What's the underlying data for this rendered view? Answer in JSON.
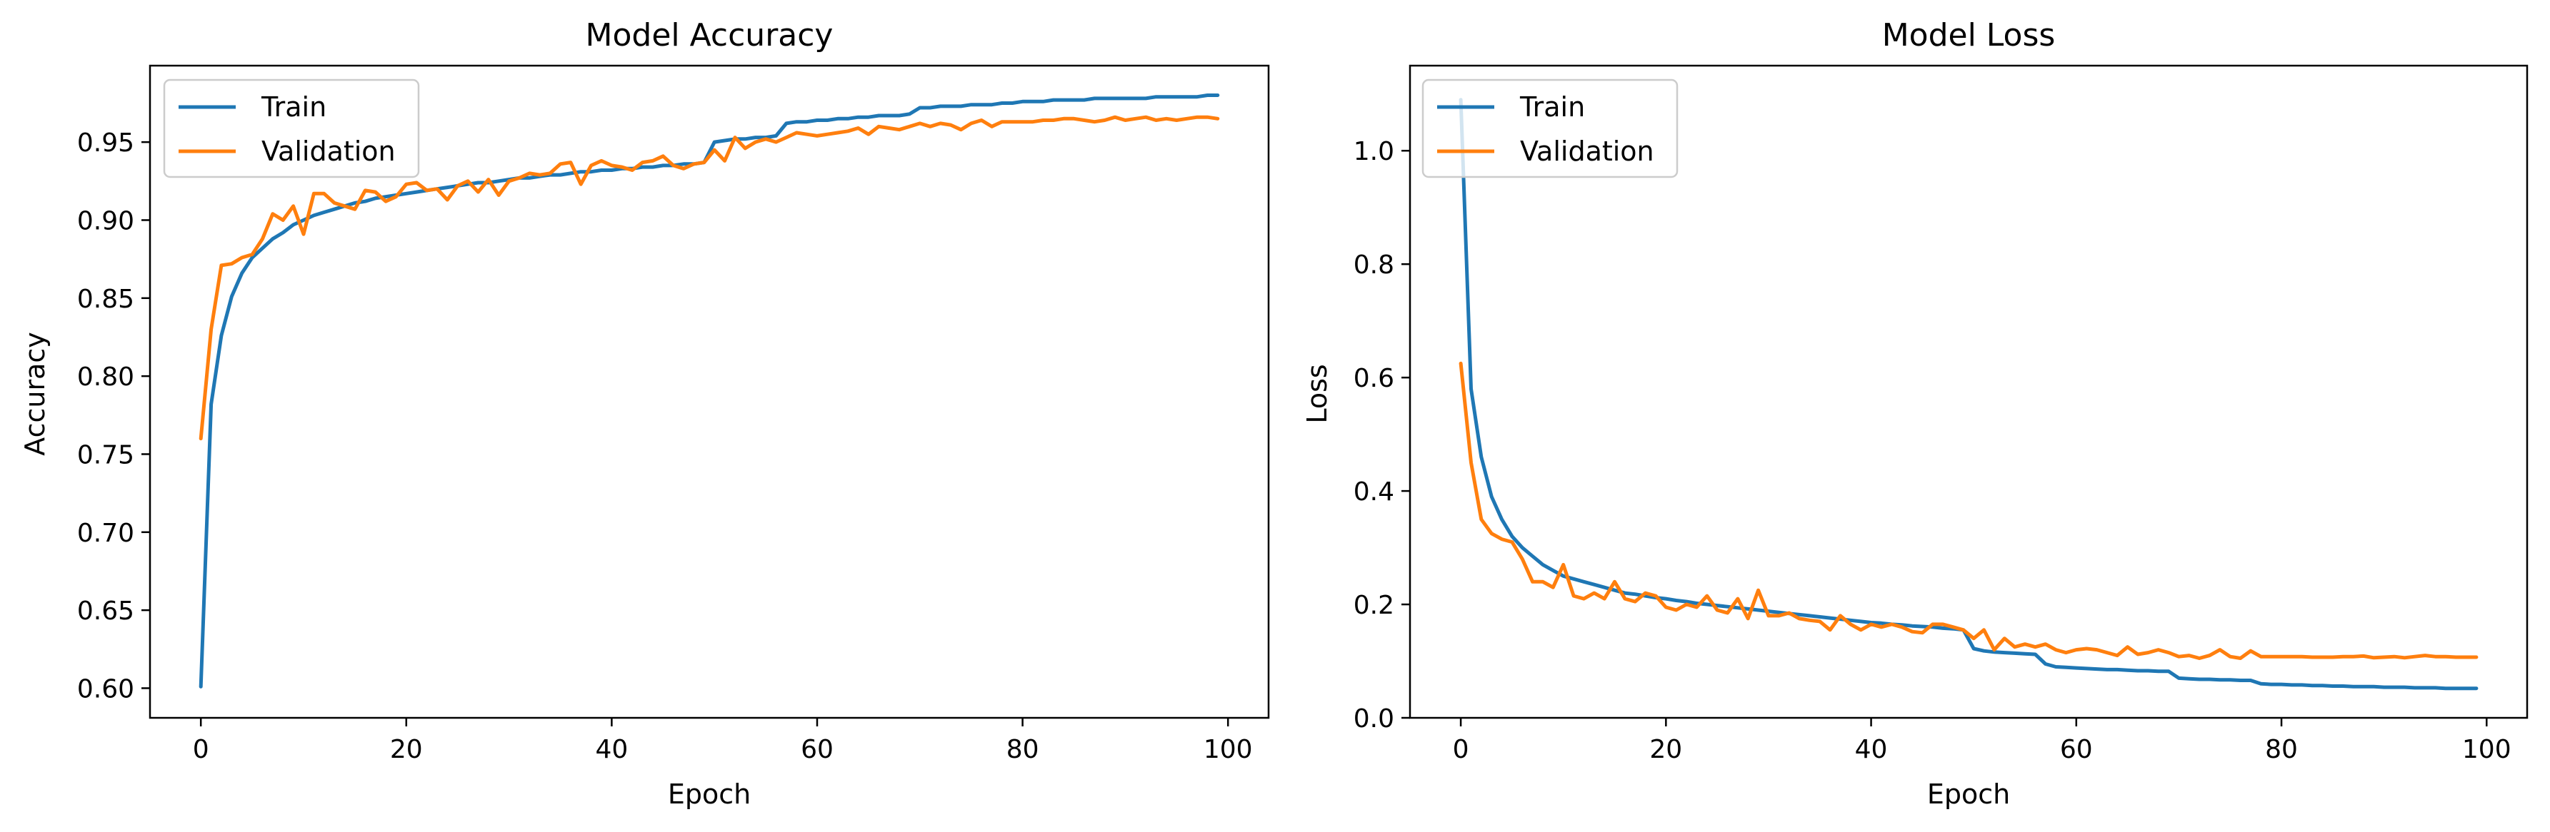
{
  "chart_data": [
    {
      "type": "line",
      "title": "Model Accuracy",
      "xlabel": "Epoch",
      "ylabel": "Accuracy",
      "xlim": [
        -4.95,
        103.95
      ],
      "ylim": [
        0.581,
        0.999
      ],
      "xticks": [
        0,
        20,
        40,
        60,
        80,
        100
      ],
      "yticks": [
        0.6,
        0.65,
        0.7,
        0.75,
        0.8,
        0.85,
        0.9,
        0.95
      ],
      "ytick_labels": [
        "0.60",
        "0.65",
        "0.70",
        "0.75",
        "0.80",
        "0.85",
        "0.90",
        "0.95"
      ],
      "grid": false,
      "legend": "upper-left",
      "series": [
        {
          "name": "Train",
          "color": "#1f77b4",
          "values": [
            0.601,
            0.782,
            0.826,
            0.851,
            0.866,
            0.876,
            0.882,
            0.888,
            0.892,
            0.897,
            0.9,
            0.903,
            0.905,
            0.907,
            0.909,
            0.911,
            0.912,
            0.914,
            0.915,
            0.916,
            0.917,
            0.918,
            0.919,
            0.92,
            0.921,
            0.922,
            0.923,
            0.924,
            0.924,
            0.925,
            0.926,
            0.927,
            0.927,
            0.928,
            0.929,
            0.929,
            0.93,
            0.931,
            0.931,
            0.932,
            0.932,
            0.933,
            0.933,
            0.934,
            0.934,
            0.935,
            0.935,
            0.936,
            0.936,
            0.937,
            0.95,
            0.951,
            0.952,
            0.952,
            0.953,
            0.953,
            0.954,
            0.962,
            0.963,
            0.963,
            0.964,
            0.964,
            0.965,
            0.965,
            0.966,
            0.966,
            0.967,
            0.967,
            0.967,
            0.968,
            0.972,
            0.972,
            0.973,
            0.973,
            0.973,
            0.974,
            0.974,
            0.974,
            0.975,
            0.975,
            0.976,
            0.976,
            0.976,
            0.977,
            0.977,
            0.977,
            0.977,
            0.978,
            0.978,
            0.978,
            0.978,
            0.978,
            0.978,
            0.979,
            0.979,
            0.979,
            0.979,
            0.979,
            0.98,
            0.98
          ]
        },
        {
          "name": "Validation",
          "color": "#ff7f0e",
          "values": [
            0.76,
            0.83,
            0.871,
            0.872,
            0.876,
            0.878,
            0.888,
            0.904,
            0.9,
            0.909,
            0.891,
            0.917,
            0.917,
            0.911,
            0.909,
            0.907,
            0.919,
            0.918,
            0.912,
            0.915,
            0.923,
            0.924,
            0.919,
            0.92,
            0.913,
            0.922,
            0.925,
            0.918,
            0.926,
            0.916,
            0.925,
            0.927,
            0.93,
            0.929,
            0.93,
            0.936,
            0.937,
            0.923,
            0.935,
            0.938,
            0.935,
            0.934,
            0.932,
            0.937,
            0.938,
            0.941,
            0.935,
            0.933,
            0.936,
            0.937,
            0.945,
            0.938,
            0.953,
            0.946,
            0.95,
            0.952,
            0.95,
            0.953,
            0.956,
            0.955,
            0.954,
            0.955,
            0.956,
            0.957,
            0.959,
            0.955,
            0.96,
            0.959,
            0.958,
            0.96,
            0.962,
            0.96,
            0.962,
            0.961,
            0.958,
            0.962,
            0.964,
            0.96,
            0.963,
            0.963,
            0.963,
            0.963,
            0.964,
            0.964,
            0.965,
            0.965,
            0.964,
            0.963,
            0.964,
            0.966,
            0.964,
            0.965,
            0.966,
            0.964,
            0.965,
            0.964,
            0.965,
            0.966,
            0.966,
            0.965
          ]
        }
      ]
    },
    {
      "type": "line",
      "title": "Model Loss",
      "xlabel": "Epoch",
      "ylabel": "Loss",
      "xlim": [
        -4.95,
        103.95
      ],
      "ylim": [
        0.0,
        1.15
      ],
      "xticks": [
        0,
        20,
        40,
        60,
        80,
        100
      ],
      "yticks": [
        0.0,
        0.2,
        0.4,
        0.6,
        0.8,
        1.0
      ],
      "ytick_labels": [
        "0.0",
        "0.2",
        "0.4",
        "0.6",
        "0.8",
        "1.0"
      ],
      "grid": false,
      "legend": "upper-left",
      "series": [
        {
          "name": "Train",
          "color": "#1f77b4",
          "values": [
            1.09,
            0.58,
            0.46,
            0.39,
            0.35,
            0.32,
            0.3,
            0.285,
            0.27,
            0.26,
            0.25,
            0.245,
            0.24,
            0.235,
            0.23,
            0.225,
            0.22,
            0.218,
            0.215,
            0.212,
            0.21,
            0.207,
            0.205,
            0.202,
            0.2,
            0.198,
            0.196,
            0.194,
            0.192,
            0.19,
            0.188,
            0.186,
            0.184,
            0.182,
            0.18,
            0.178,
            0.176,
            0.174,
            0.172,
            0.17,
            0.168,
            0.167,
            0.165,
            0.164,
            0.162,
            0.161,
            0.16,
            0.158,
            0.157,
            0.155,
            0.122,
            0.118,
            0.116,
            0.115,
            0.114,
            0.113,
            0.112,
            0.095,
            0.09,
            0.089,
            0.088,
            0.087,
            0.086,
            0.085,
            0.085,
            0.084,
            0.083,
            0.083,
            0.082,
            0.082,
            0.07,
            0.069,
            0.068,
            0.068,
            0.067,
            0.067,
            0.066,
            0.066,
            0.06,
            0.059,
            0.059,
            0.058,
            0.058,
            0.057,
            0.057,
            0.056,
            0.056,
            0.055,
            0.055,
            0.055,
            0.054,
            0.054,
            0.054,
            0.053,
            0.053,
            0.053,
            0.052,
            0.052,
            0.052,
            0.052
          ]
        },
        {
          "name": "Validation",
          "color": "#ff7f0e",
          "values": [
            0.625,
            0.45,
            0.35,
            0.325,
            0.315,
            0.31,
            0.28,
            0.24,
            0.24,
            0.23,
            0.27,
            0.215,
            0.21,
            0.22,
            0.21,
            0.24,
            0.21,
            0.205,
            0.22,
            0.215,
            0.195,
            0.19,
            0.2,
            0.195,
            0.215,
            0.19,
            0.185,
            0.21,
            0.175,
            0.225,
            0.18,
            0.18,
            0.185,
            0.175,
            0.172,
            0.17,
            0.155,
            0.18,
            0.165,
            0.155,
            0.165,
            0.16,
            0.165,
            0.16,
            0.152,
            0.15,
            0.165,
            0.165,
            0.16,
            0.155,
            0.14,
            0.155,
            0.12,
            0.14,
            0.125,
            0.13,
            0.125,
            0.13,
            0.12,
            0.115,
            0.12,
            0.122,
            0.12,
            0.115,
            0.11,
            0.125,
            0.112,
            0.115,
            0.12,
            0.115,
            0.108,
            0.11,
            0.105,
            0.11,
            0.12,
            0.108,
            0.105,
            0.118,
            0.108,
            0.108,
            0.108,
            0.108,
            0.108,
            0.107,
            0.107,
            0.107,
            0.108,
            0.108,
            0.109,
            0.106,
            0.107,
            0.108,
            0.106,
            0.108,
            0.11,
            0.108,
            0.108,
            0.107,
            0.107,
            0.107
          ]
        }
      ]
    }
  ]
}
